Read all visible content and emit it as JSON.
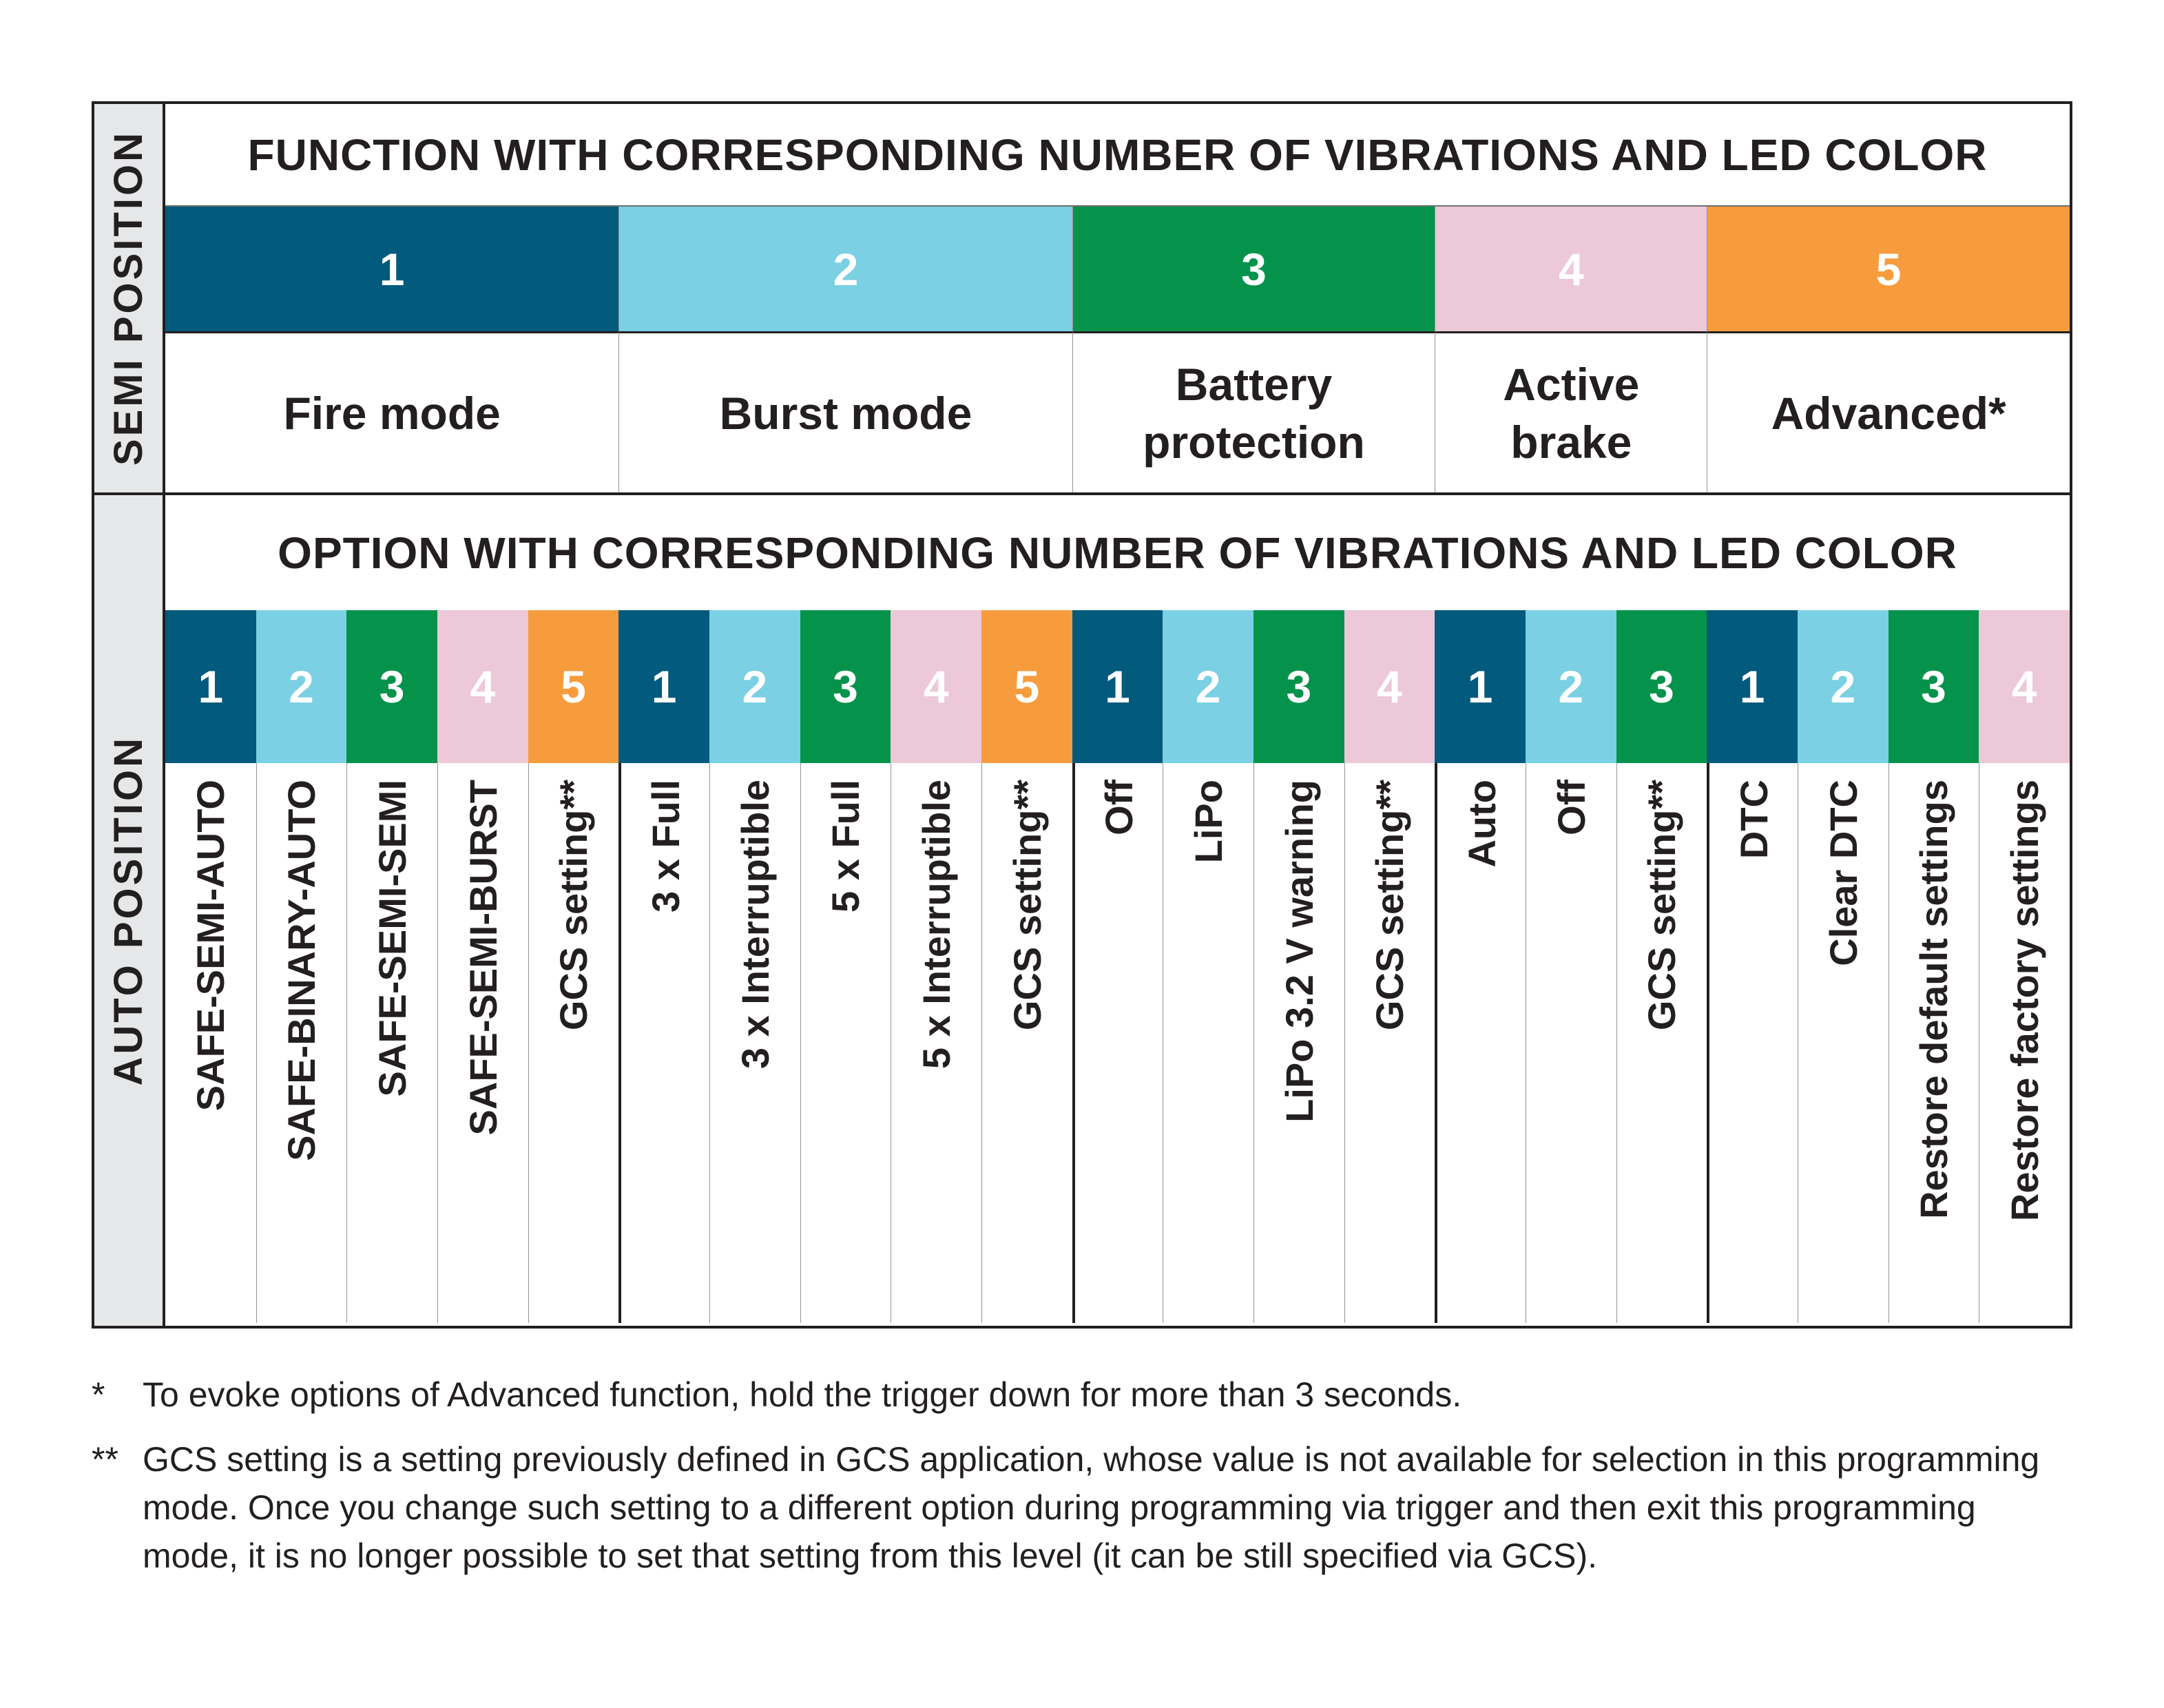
{
  "palette": {
    "1": "#025a7c",
    "2": "#7bd0e3",
    "3": "#05934b",
    "4": "#ecc8d8",
    "5": "#f79c3d"
  },
  "semi": {
    "side_label": "SEMI POSITION",
    "title": "FUNCTION WITH CORRESPONDING NUMBER OF VIBRATIONS AND LED COLOR",
    "functions": [
      {
        "number": "1",
        "label": "Fire mode"
      },
      {
        "number": "2",
        "label": "Burst mode"
      },
      {
        "number": "3",
        "label": "Battery protection"
      },
      {
        "number": "4",
        "label": "Active brake"
      },
      {
        "number": "5",
        "label": "Advanced*"
      }
    ]
  },
  "auto": {
    "side_label": "AUTO POSITION",
    "title": "OPTION WITH CORRESPONDING NUMBER OF VIBRATIONS AND LED COLOR",
    "groups": [
      {
        "options": [
          {
            "number": "1",
            "label": "SAFE-SEMI-AUTO"
          },
          {
            "number": "2",
            "label": "SAFE-BINARY-AUTO"
          },
          {
            "number": "3",
            "label": "SAFE-SEMI-SEMI"
          },
          {
            "number": "4",
            "label": "SAFE-SEMI-BURST"
          },
          {
            "number": "5",
            "label": "GCS setting**"
          }
        ]
      },
      {
        "options": [
          {
            "number": "1",
            "label": "3 x Full"
          },
          {
            "number": "2",
            "label": "3 x Interruptible"
          },
          {
            "number": "3",
            "label": "5 x Full"
          },
          {
            "number": "4",
            "label": "5 x Interruptible"
          },
          {
            "number": "5",
            "label": "GCS setting**"
          }
        ]
      },
      {
        "options": [
          {
            "number": "1",
            "label": "Off"
          },
          {
            "number": "2",
            "label": "LiPo"
          },
          {
            "number": "3",
            "label": "LiPo 3.2 V warning"
          },
          {
            "number": "4",
            "label": "GCS setting**"
          }
        ]
      },
      {
        "options": [
          {
            "number": "1",
            "label": "Auto"
          },
          {
            "number": "2",
            "label": "Off"
          },
          {
            "number": "3",
            "label": "GCS setting**"
          }
        ]
      },
      {
        "options": [
          {
            "number": "1",
            "label": "DTC"
          },
          {
            "number": "2",
            "label": "Clear DTC"
          },
          {
            "number": "3",
            "label": "Restore default settings"
          },
          {
            "number": "4",
            "label": "Restore factory settings"
          }
        ]
      }
    ]
  },
  "footnotes": [
    {
      "mark": "*",
      "text": "To evoke options of Advanced function, hold the trigger down for more than 3 seconds."
    },
    {
      "mark": "**",
      "text": "GCS setting is a setting previously defined in GCS application, whose value is not available for selection in this programming mode. Once you change such setting to a different option during programming via trigger and then exit this programming mode, it is no longer possible to set that setting from this level (it can be still specified via GCS)."
    }
  ]
}
